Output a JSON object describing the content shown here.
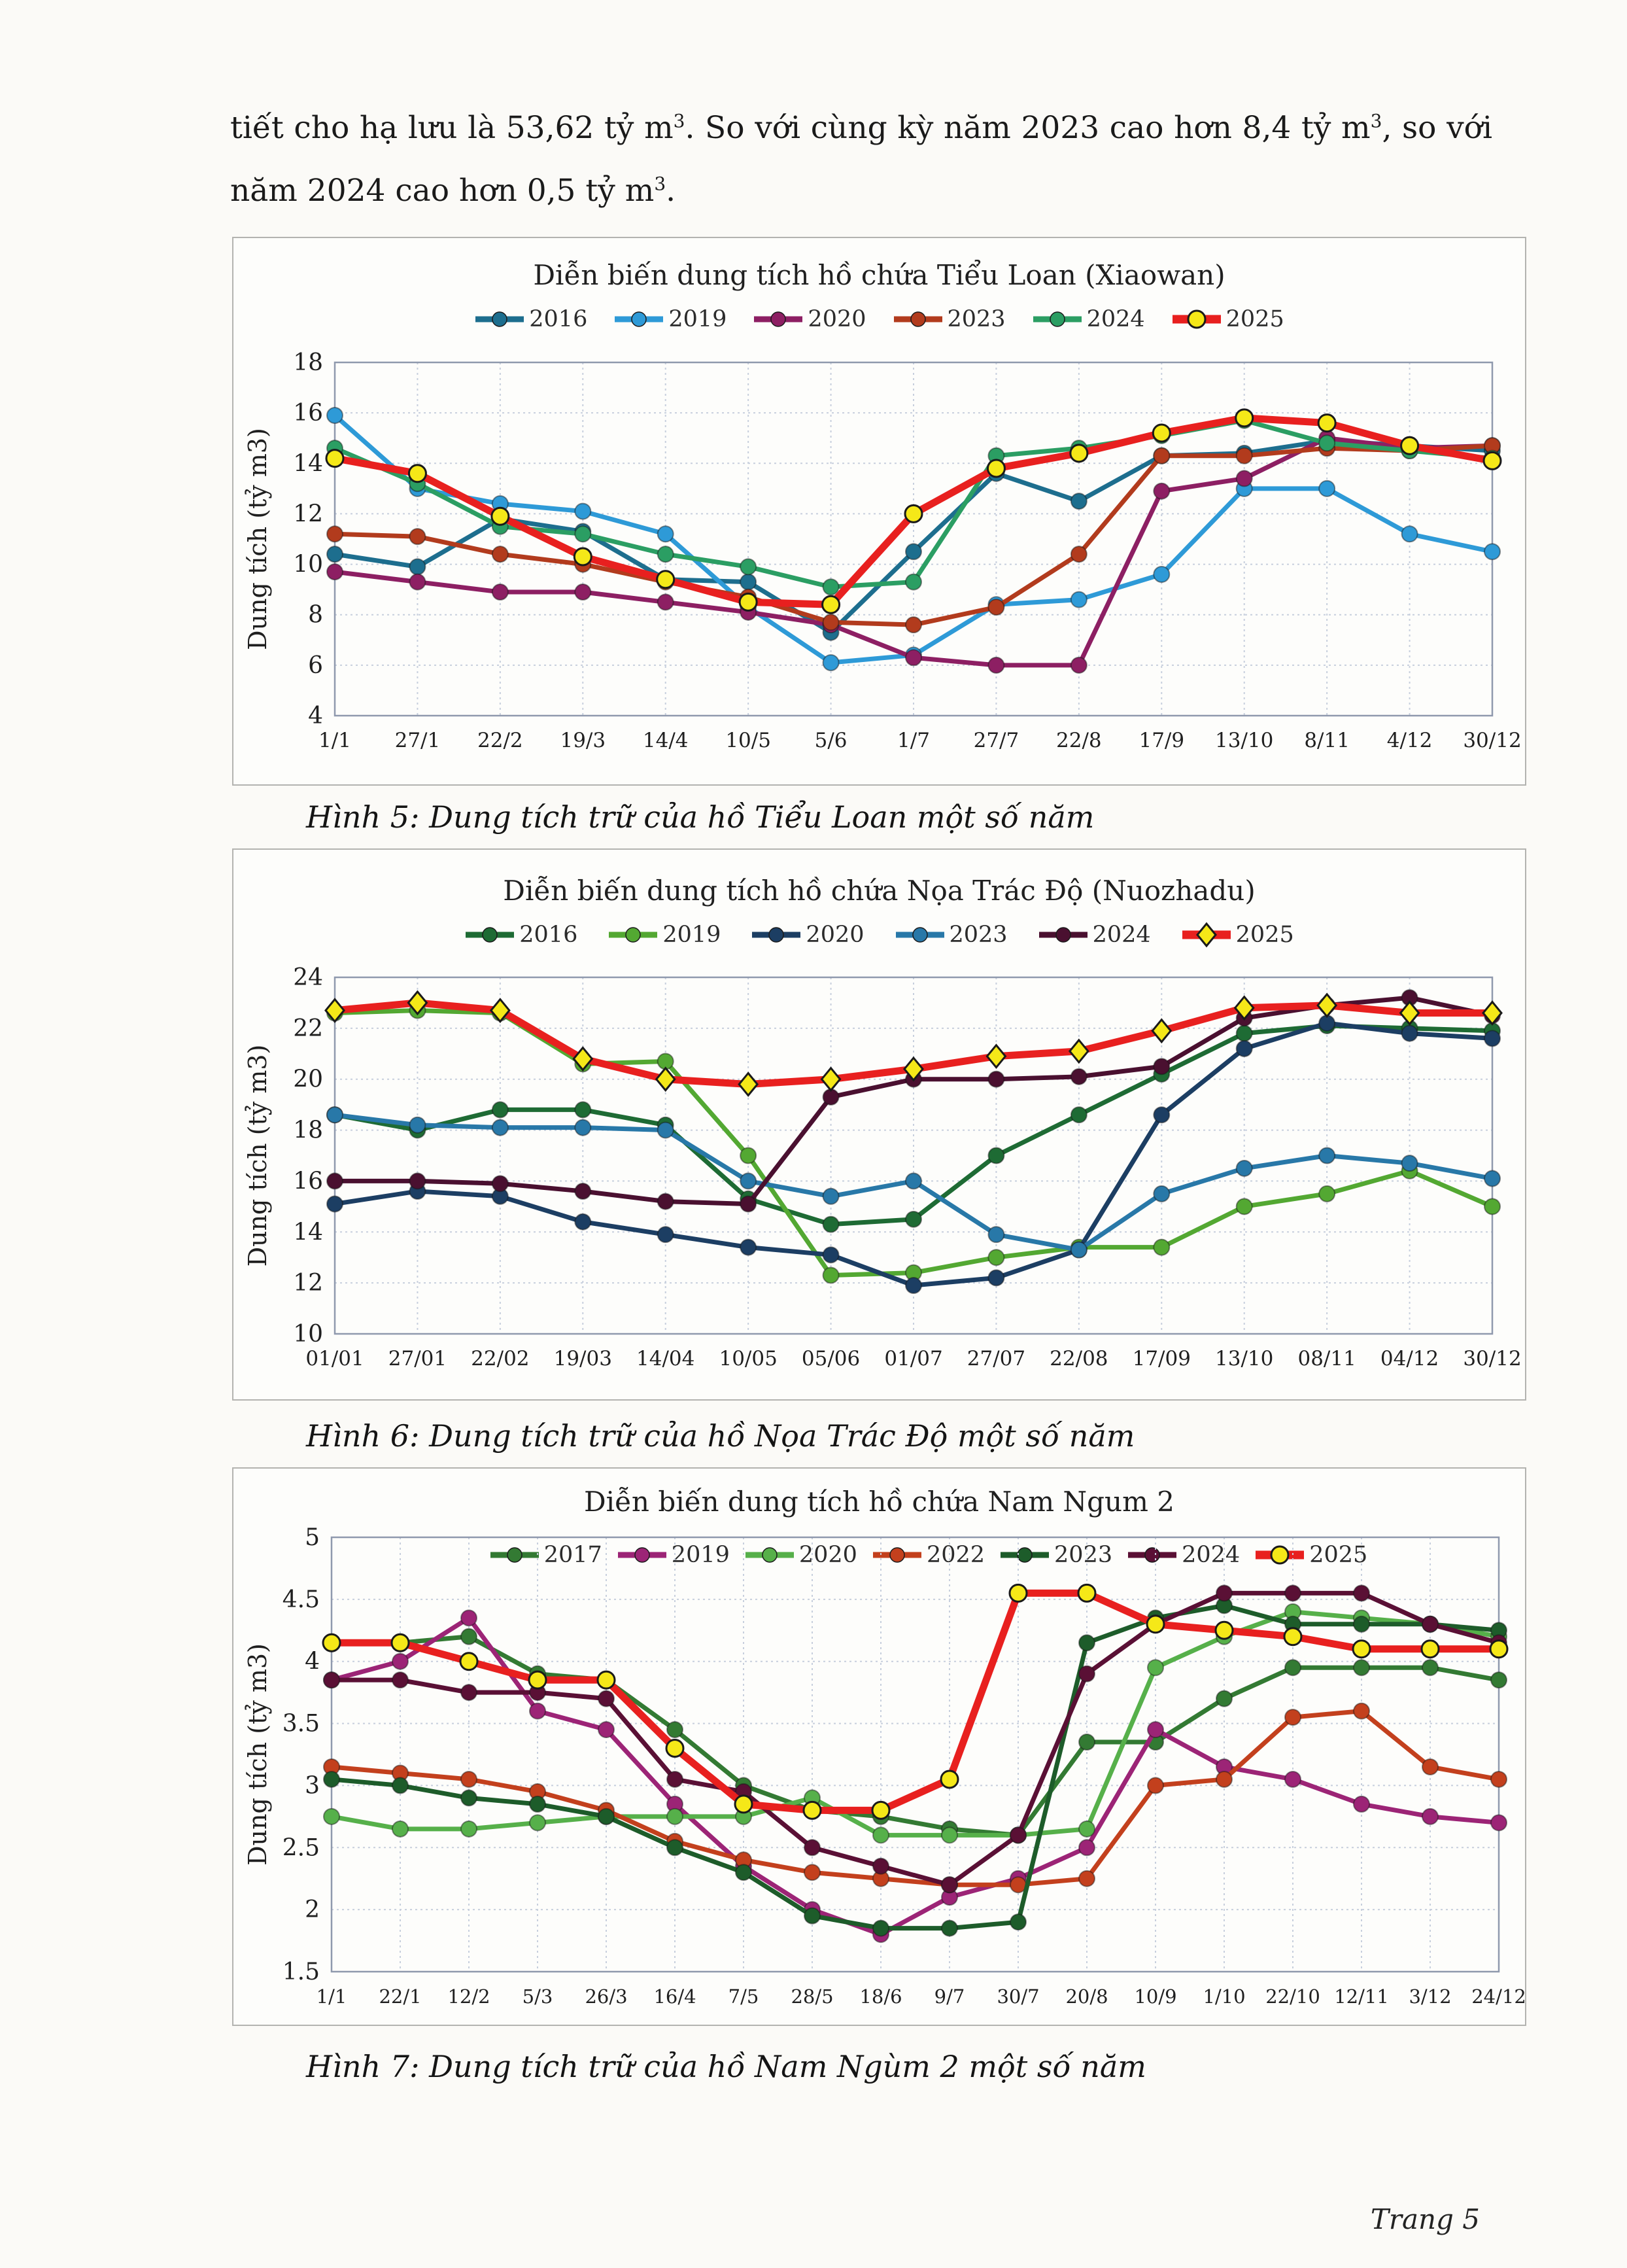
{
  "page": {
    "intro": {
      "line1": [
        "tiết cho hạ lưu là 53,62 tỷ m",
        "3",
        ". So với cùng kỳ năm 2023 cao hơn 8,4 tỷ m",
        "3",
        ", so với"
      ],
      "line2": [
        "năm 2024 cao hơn 0,5 tỷ m",
        "3",
        "."
      ]
    },
    "captions": {
      "fig5": "Hình 5: Dung tích trữ của hồ Tiểu Loan một số năm",
      "fig6": "Hình 6: Dung tích trữ của hồ Nọa Trác Độ một số năm",
      "fig7": "Hình 7: Dung tích trữ của hồ Nam Ngùm 2 một số năm"
    },
    "footer": "Trang 5"
  },
  "colors": {
    "accent_red": "#e8201f",
    "marker_yellow": "#f5e818",
    "gridline": "#c7cfdd",
    "plot_border": "#8f99ad"
  },
  "chart_data": [
    {
      "type": "line",
      "title": "Diễn biến dung tích hồ chứa Tiểu Loan (Xiaowan)",
      "ylabel": "Dung tích (tỷ m3)",
      "ylim": [
        4,
        18
      ],
      "yticks": [
        4,
        6,
        8,
        10,
        12,
        14,
        16,
        18
      ],
      "grid": true,
      "legend_position": "top",
      "categories": [
        "1/1",
        "27/1",
        "22/2",
        "19/3",
        "14/4",
        "10/5",
        "5/6",
        "1/7",
        "27/7",
        "22/8",
        "17/9",
        "13/10",
        "8/11",
        "4/12",
        "30/12"
      ],
      "series": [
        {
          "name": "2016",
          "color": "#1d6e8e",
          "marker": "circle",
          "values": [
            10.4,
            9.9,
            11.8,
            11.3,
            9.4,
            9.3,
            7.3,
            10.5,
            13.6,
            12.5,
            14.3,
            14.4,
            14.9,
            14.7,
            14.5
          ]
        },
        {
          "name": "2019",
          "color": "#2e9ad7",
          "marker": "circle",
          "values": [
            15.9,
            13.0,
            12.4,
            12.1,
            11.2,
            8.3,
            6.1,
            6.4,
            8.4,
            8.6,
            9.6,
            13.0,
            13.0,
            11.2,
            10.5
          ]
        },
        {
          "name": "2020",
          "color": "#8d1f63",
          "marker": "circle",
          "values": [
            9.7,
            9.3,
            8.9,
            8.9,
            8.5,
            8.1,
            7.6,
            6.3,
            6.0,
            6.0,
            12.9,
            13.4,
            15.0,
            14.6,
            14.7
          ]
        },
        {
          "name": "2023",
          "color": "#b23b1d",
          "marker": "circle",
          "values": [
            11.2,
            11.1,
            10.4,
            10.0,
            9.3,
            8.7,
            7.7,
            7.6,
            8.3,
            10.4,
            14.3,
            14.3,
            14.6,
            14.5,
            14.7
          ]
        },
        {
          "name": "2024",
          "color": "#2b9e63",
          "marker": "circle",
          "values": [
            14.6,
            13.2,
            11.5,
            11.2,
            10.4,
            9.9,
            9.1,
            9.3,
            14.3,
            14.6,
            15.1,
            15.7,
            14.8,
            14.5,
            14.2
          ]
        },
        {
          "name": "2025",
          "color": "#e8201f",
          "marker": "circle",
          "marker_fill": "#f5e818",
          "highlight": true,
          "values": [
            14.2,
            13.6,
            11.9,
            10.3,
            9.4,
            8.5,
            8.4,
            12.0,
            13.8,
            14.4,
            15.2,
            15.8,
            15.6,
            14.7,
            14.1
          ]
        }
      ]
    },
    {
      "type": "line",
      "title": "Diễn biến dung tích hồ chứa Nọa Trác Độ (Nuozhadu)",
      "ylabel": "Dung tích (tỷ m3)",
      "ylim": [
        10,
        24
      ],
      "yticks": [
        10,
        12,
        14,
        16,
        18,
        20,
        22,
        24
      ],
      "grid": true,
      "legend_position": "top",
      "categories": [
        "01/01",
        "27/01",
        "22/02",
        "19/03",
        "14/04",
        "10/05",
        "05/06",
        "01/07",
        "27/07",
        "22/08",
        "17/09",
        "13/10",
        "08/11",
        "04/12",
        "30/12"
      ],
      "series": [
        {
          "name": "2016",
          "color": "#1e6b34",
          "marker": "circle",
          "values": [
            18.6,
            18.0,
            18.8,
            18.8,
            18.2,
            15.3,
            14.3,
            14.5,
            17.0,
            18.6,
            20.2,
            21.8,
            22.1,
            22.0,
            21.9
          ]
        },
        {
          "name": "2019",
          "color": "#53a832",
          "marker": "circle",
          "values": [
            22.6,
            22.7,
            22.6,
            20.6,
            20.7,
            17.0,
            12.3,
            12.4,
            13.0,
            13.4,
            13.4,
            15.0,
            15.5,
            16.4,
            15.0
          ]
        },
        {
          "name": "2020",
          "color": "#1c3e63",
          "marker": "circle",
          "values": [
            15.1,
            15.6,
            15.4,
            14.4,
            13.9,
            13.4,
            13.1,
            11.9,
            12.2,
            13.3,
            18.6,
            21.2,
            22.2,
            21.8,
            21.6
          ]
        },
        {
          "name": "2023",
          "color": "#2878a8",
          "marker": "circle",
          "values": [
            18.6,
            18.2,
            18.1,
            18.1,
            18.0,
            16.0,
            15.4,
            16.0,
            13.9,
            13.3,
            15.5,
            16.5,
            17.0,
            16.7,
            16.1
          ]
        },
        {
          "name": "2024",
          "color": "#4a1030",
          "marker": "circle",
          "values": [
            16.0,
            16.0,
            15.9,
            15.6,
            15.2,
            15.1,
            19.3,
            20.0,
            20.0,
            20.1,
            20.5,
            22.4,
            22.9,
            23.2,
            22.5
          ]
        },
        {
          "name": "2025",
          "color": "#e8201f",
          "marker": "diamond",
          "marker_fill": "#f5e818",
          "highlight": true,
          "values": [
            22.7,
            23.0,
            22.7,
            20.8,
            20.0,
            19.8,
            20.0,
            20.4,
            20.9,
            21.1,
            21.9,
            22.8,
            22.9,
            22.6,
            22.6
          ]
        }
      ]
    },
    {
      "type": "line",
      "title": "Diễn biến dung tích hồ chứa Nam Ngum 2",
      "ylabel": "Dung tích (tỷ m3)",
      "ylim": [
        1.5,
        5
      ],
      "yticks": [
        1.5,
        2,
        2.5,
        3,
        3.5,
        4,
        4.5,
        5
      ],
      "grid": true,
      "legend_position": "inside-top",
      "categories": [
        "1/1",
        "22/1",
        "12/2",
        "5/3",
        "26/3",
        "16/4",
        "7/5",
        "28/5",
        "18/6",
        "9/7",
        "30/7",
        "20/8",
        "10/9",
        "1/10",
        "22/10",
        "12/11",
        "3/12",
        "24/12"
      ],
      "series": [
        {
          "name": "2017",
          "color": "#337a33",
          "marker": "circle",
          "values": [
            4.15,
            4.15,
            4.2,
            3.9,
            3.85,
            3.45,
            3.0,
            2.8,
            2.75,
            2.65,
            2.6,
            3.35,
            3.35,
            3.7,
            3.95,
            3.95,
            3.95,
            3.85
          ]
        },
        {
          "name": "2019",
          "color": "#9c2476",
          "marker": "circle",
          "values": [
            3.85,
            4.0,
            4.35,
            3.6,
            3.45,
            2.85,
            2.35,
            2.0,
            1.8,
            2.1,
            2.25,
            2.5,
            3.45,
            3.15,
            3.05,
            2.85,
            2.75,
            2.7
          ]
        },
        {
          "name": "2020",
          "color": "#56b04a",
          "marker": "circle",
          "values": [
            2.75,
            2.65,
            2.65,
            2.7,
            2.75,
            2.75,
            2.75,
            2.9,
            2.6,
            2.6,
            2.6,
            2.65,
            3.95,
            4.2,
            4.4,
            4.35,
            4.3,
            4.2
          ]
        },
        {
          "name": "2022",
          "color": "#c3401d",
          "marker": "circle",
          "values": [
            3.15,
            3.1,
            3.05,
            2.95,
            2.8,
            2.55,
            2.4,
            2.3,
            2.25,
            2.2,
            2.2,
            2.25,
            3.0,
            3.05,
            3.55,
            3.6,
            3.15,
            3.05
          ]
        },
        {
          "name": "2023",
          "color": "#1d5c2a",
          "marker": "circle",
          "values": [
            3.05,
            3.0,
            2.9,
            2.85,
            2.75,
            2.5,
            2.3,
            1.95,
            1.85,
            1.85,
            1.9,
            4.15,
            4.35,
            4.45,
            4.3,
            4.3,
            4.3,
            4.25
          ]
        },
        {
          "name": "2024",
          "color": "#5a1035",
          "marker": "circle",
          "values": [
            3.85,
            3.85,
            3.75,
            3.75,
            3.7,
            3.05,
            2.95,
            2.5,
            2.35,
            2.2,
            2.6,
            3.9,
            4.3,
            4.55,
            4.55,
            4.55,
            4.3,
            4.15
          ]
        },
        {
          "name": "2025",
          "color": "#e8201f",
          "marker": "circle",
          "marker_fill": "#f5e818",
          "highlight": true,
          "values": [
            4.15,
            4.15,
            4.0,
            3.85,
            3.85,
            3.3,
            2.85,
            2.8,
            2.8,
            3.05,
            4.55,
            4.55,
            4.3,
            4.25,
            4.2,
            4.1,
            4.1,
            4.1
          ]
        }
      ]
    }
  ]
}
